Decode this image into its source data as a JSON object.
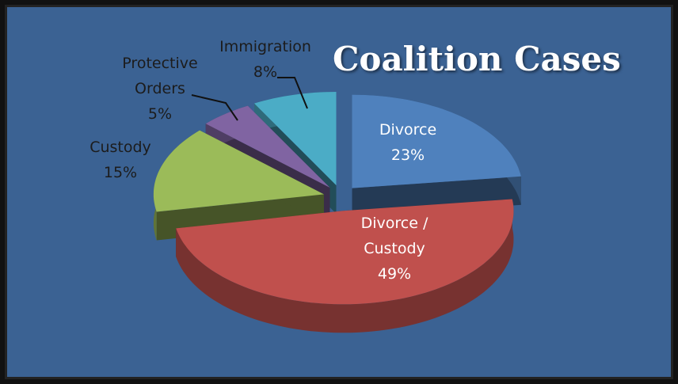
{
  "chart_data": {
    "type": "pie",
    "title": "Coalition Cases",
    "categories": [
      "Divorce",
      "Divorce / Custody",
      "Custody",
      "Protective Orders",
      "Immigration"
    ],
    "values": [
      23,
      49,
      15,
      5,
      8
    ],
    "value_labels": [
      "23%",
      "49%",
      "15%",
      "5%",
      "8%"
    ],
    "colors": [
      "#4f81bd",
      "#c0504d",
      "#9bbb59",
      "#8064a2",
      "#4bacc6"
    ]
  }
}
